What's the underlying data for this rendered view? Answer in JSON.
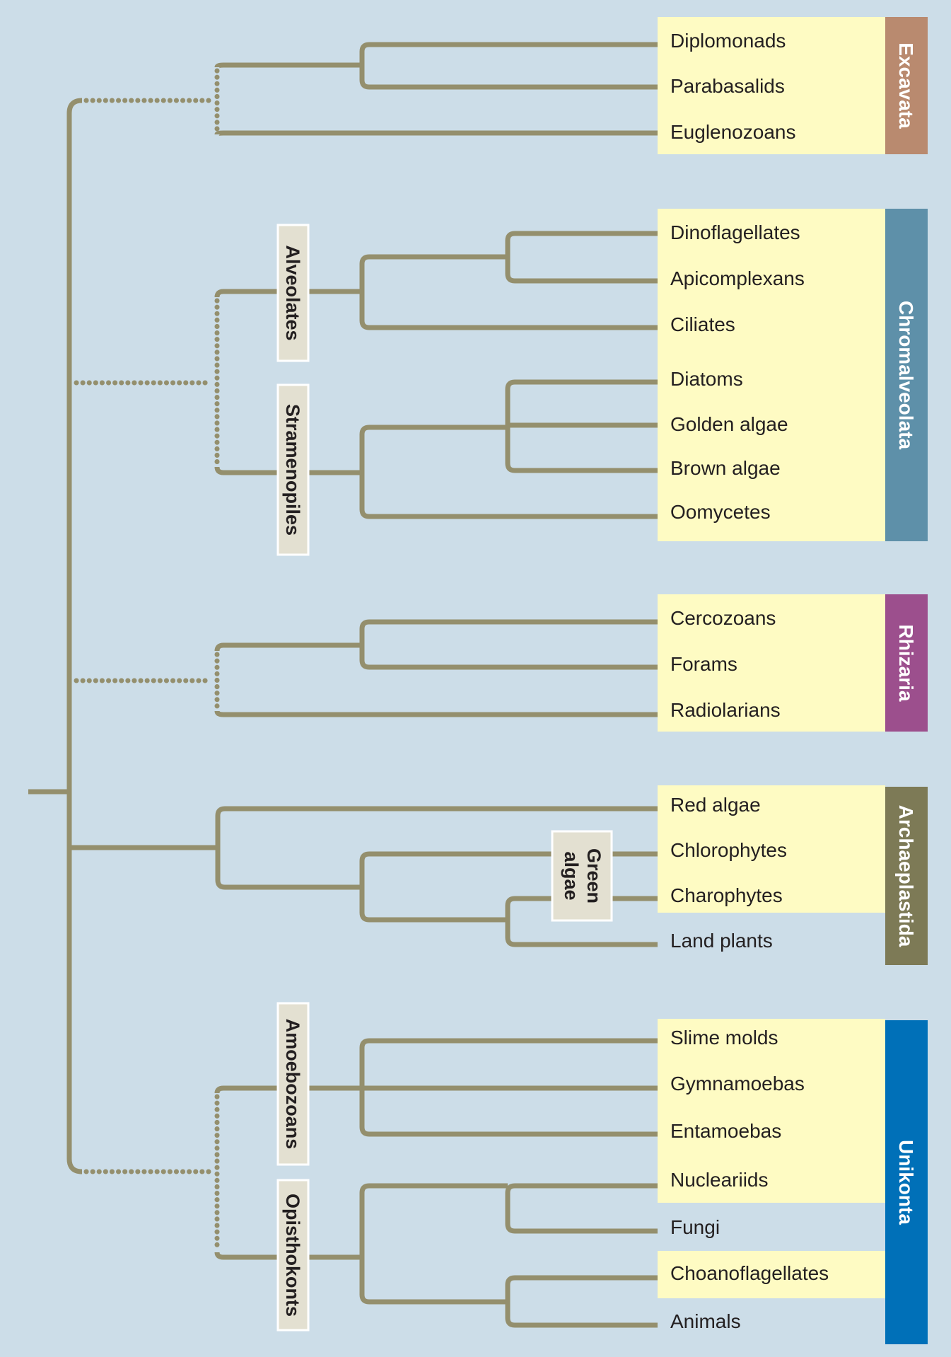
{
  "colors": {
    "background": "#ccdde8",
    "branch": "#948f6d",
    "taxon_highlight": "#fefbc3",
    "Excavata": "#b98a6f",
    "Chromalveolata": "#5e90a9",
    "Rhizaria": "#9c4f8d",
    "Archaeplastida": "#7d7a56",
    "Unikonta": "#0070b8"
  },
  "groups": [
    {
      "name": "Excavata",
      "color_key": "Excavata"
    },
    {
      "name": "Chromalveolata",
      "color_key": "Chromalveolata"
    },
    {
      "name": "Rhizaria",
      "color_key": "Rhizaria"
    },
    {
      "name": "Archaeplastida",
      "color_key": "Archaeplastida"
    },
    {
      "name": "Unikonta",
      "color_key": "Unikonta"
    }
  ],
  "clades": [
    {
      "name": "Alveolates",
      "lines": [
        "Alveolates"
      ]
    },
    {
      "name": "Stramenopiles",
      "lines": [
        "Stramenopiles"
      ]
    },
    {
      "name": "Green algae",
      "lines": [
        "Green",
        "algae"
      ]
    },
    {
      "name": "Amoebozoans",
      "lines": [
        "Amoebozoans"
      ]
    },
    {
      "name": "Opisthokonts",
      "lines": [
        "Opisthokonts"
      ]
    }
  ],
  "taxa": [
    "Diplomonads",
    "Parabasalids",
    "Euglenozoans",
    "Dinoflagellates",
    "Apicomplexans",
    "Ciliates",
    "Diatoms",
    "Golden algae",
    "Brown algae",
    "Oomycetes",
    "Cercozoans",
    "Forams",
    "Radiolarians",
    "Red algae",
    "Chlorophytes",
    "Charophytes",
    "Land plants",
    "Slime molds",
    "Gymnamoebas",
    "Entamoebas",
    "Nucleariids",
    "Fungi",
    "Choanoflagellates",
    "Animals"
  ]
}
